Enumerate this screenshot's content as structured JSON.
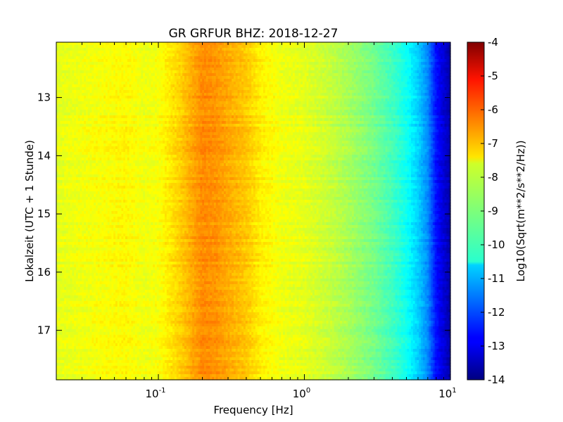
{
  "chart_data": {
    "type": "heatmap",
    "title": "GR GRFUR BHZ: 2018-12-27",
    "xlabel": "Frequency [Hz]",
    "ylabel": "Lokalzeit (UTC + 1 Stunde)",
    "colorbar_label": "Log10(Sqrt(m**2/s**2/Hz))",
    "x_scale": "log",
    "xlim": [
      0.02,
      10
    ],
    "ylim": [
      12.05,
      17.85
    ],
    "y_inverted": true,
    "x_ticks": [
      {
        "value": 0.1,
        "base": "10",
        "exp": "-1"
      },
      {
        "value": 1,
        "base": "10",
        "exp": "0"
      },
      {
        "value": 10,
        "base": "10",
        "exp": "1"
      }
    ],
    "y_ticks": [
      {
        "value": 13,
        "label": "13"
      },
      {
        "value": 14,
        "label": "14"
      },
      {
        "value": 15,
        "label": "15"
      },
      {
        "value": 16,
        "label": "16"
      },
      {
        "value": 17,
        "label": "17"
      }
    ],
    "colorbar_range": [
      -14,
      -4
    ],
    "colorbar_ticks": [
      "-4",
      "-5",
      "-6",
      "-7",
      "-8",
      "-9",
      "-10",
      "-11",
      "-12",
      "-13",
      "-14"
    ],
    "colormap": "jet",
    "spectrum_profile": {
      "frequency_hz": [
        0.02,
        0.04,
        0.06,
        0.08,
        0.1,
        0.14,
        0.17,
        0.2,
        0.25,
        0.3,
        0.4,
        0.5,
        0.7,
        1.0,
        1.5,
        2.0,
        3.0,
        4.0,
        5.0,
        6.0,
        7.0,
        8.0,
        10.0
      ],
      "log10_amplitude": [
        -8.0,
        -7.8,
        -7.7,
        -7.9,
        -7.8,
        -7.3,
        -6.9,
        -6.6,
        -6.7,
        -6.9,
        -7.2,
        -7.6,
        -7.9,
        -8.0,
        -8.3,
        -8.6,
        -9.1,
        -9.6,
        -10.1,
        -10.7,
        -11.4,
        -12.6,
        -13.6
      ]
    }
  }
}
